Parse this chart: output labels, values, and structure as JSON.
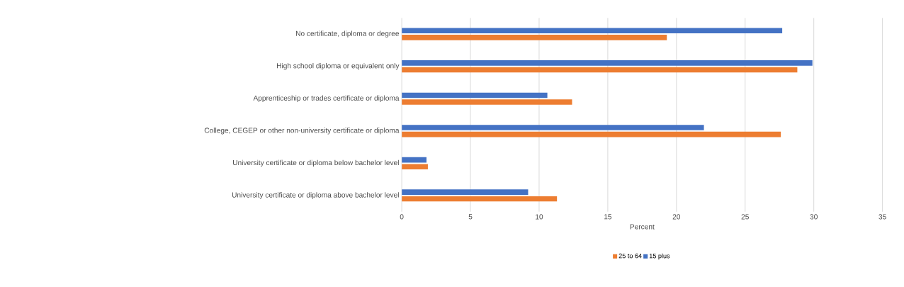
{
  "chart_data": {
    "type": "bar",
    "orientation": "horizontal",
    "categories": [
      "No certificate, diploma or degree",
      "High school diploma or equivalent only",
      "Apprenticeship or trades certificate or diploma",
      "College, CEGEP or other non-university certificate or diploma",
      "University certificate or diploma below bachelor level",
      "University certificate or diploma above bachelor level"
    ],
    "series": [
      {
        "name": "25 to 64",
        "color": "#ed7d31",
        "values": [
          19.3,
          28.8,
          12.4,
          27.6,
          1.9,
          11.3
        ]
      },
      {
        "name": "15 plus",
        "color": "#4472c4",
        "values": [
          27.7,
          29.9,
          10.6,
          22.0,
          1.8,
          9.2
        ]
      }
    ],
    "xlabel": "Percent",
    "xlim": [
      0,
      35
    ],
    "xticks": [
      0,
      5,
      10,
      15,
      20,
      25,
      30,
      35
    ],
    "grid": "x",
    "legend": "bottom"
  }
}
